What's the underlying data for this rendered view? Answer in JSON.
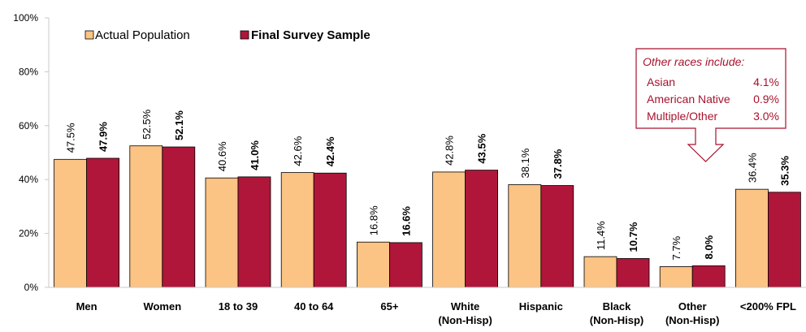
{
  "colors": {
    "actual": "#fbc384",
    "survey": "#b0163a",
    "axis": "#c8c8c8",
    "callout": "#a8122d"
  },
  "legend": [
    {
      "label": "Actual Population",
      "bold": false
    },
    {
      "label": "Final Survey Sample",
      "bold": true
    }
  ],
  "callout": {
    "title": "Other races include:",
    "rows": [
      {
        "label": "Asian",
        "value": "4.1%"
      },
      {
        "label": "American Native",
        "value": "0.9%"
      },
      {
        "label": "Multiple/Other",
        "value": "3.0%"
      }
    ]
  },
  "chart_data": {
    "type": "bar",
    "title": "",
    "xlabel": "",
    "ylabel": "",
    "ylim": [
      0,
      100
    ],
    "yticks": [
      "0%",
      "20%",
      "40%",
      "60%",
      "80%",
      "100%"
    ],
    "categories": [
      [
        "Men"
      ],
      [
        "Women"
      ],
      [
        "18 to 39"
      ],
      [
        "40 to 64"
      ],
      [
        "65+"
      ],
      [
        "White",
        "(Non-Hisp)"
      ],
      [
        "Hispanic"
      ],
      [
        "Black",
        "(Non-Hisp)"
      ],
      [
        "Other",
        "(Non-Hisp)"
      ],
      [
        "<200% FPL"
      ]
    ],
    "series": [
      {
        "name": "Actual Population",
        "values": [
          47.5,
          52.5,
          40.6,
          42.6,
          16.8,
          42.8,
          38.1,
          11.4,
          7.7,
          36.4
        ],
        "labels": [
          "47.5%",
          "52.5%",
          "40.6%",
          "42.6%",
          "16.8%",
          "42.8%",
          "38.1%",
          "11.4%",
          "7.7%",
          "36.4%"
        ]
      },
      {
        "name": "Final Survey Sample",
        "values": [
          47.9,
          52.1,
          41.0,
          42.4,
          16.6,
          43.5,
          37.8,
          10.7,
          8.0,
          35.3
        ],
        "labels": [
          "47.9%",
          "52.1%",
          "41.0%",
          "42.4%",
          "16.6%",
          "43.5%",
          "37.8%",
          "10.7%",
          "8.0%",
          "35.3%"
        ]
      }
    ],
    "grid": false,
    "legend_position": "top-left"
  }
}
